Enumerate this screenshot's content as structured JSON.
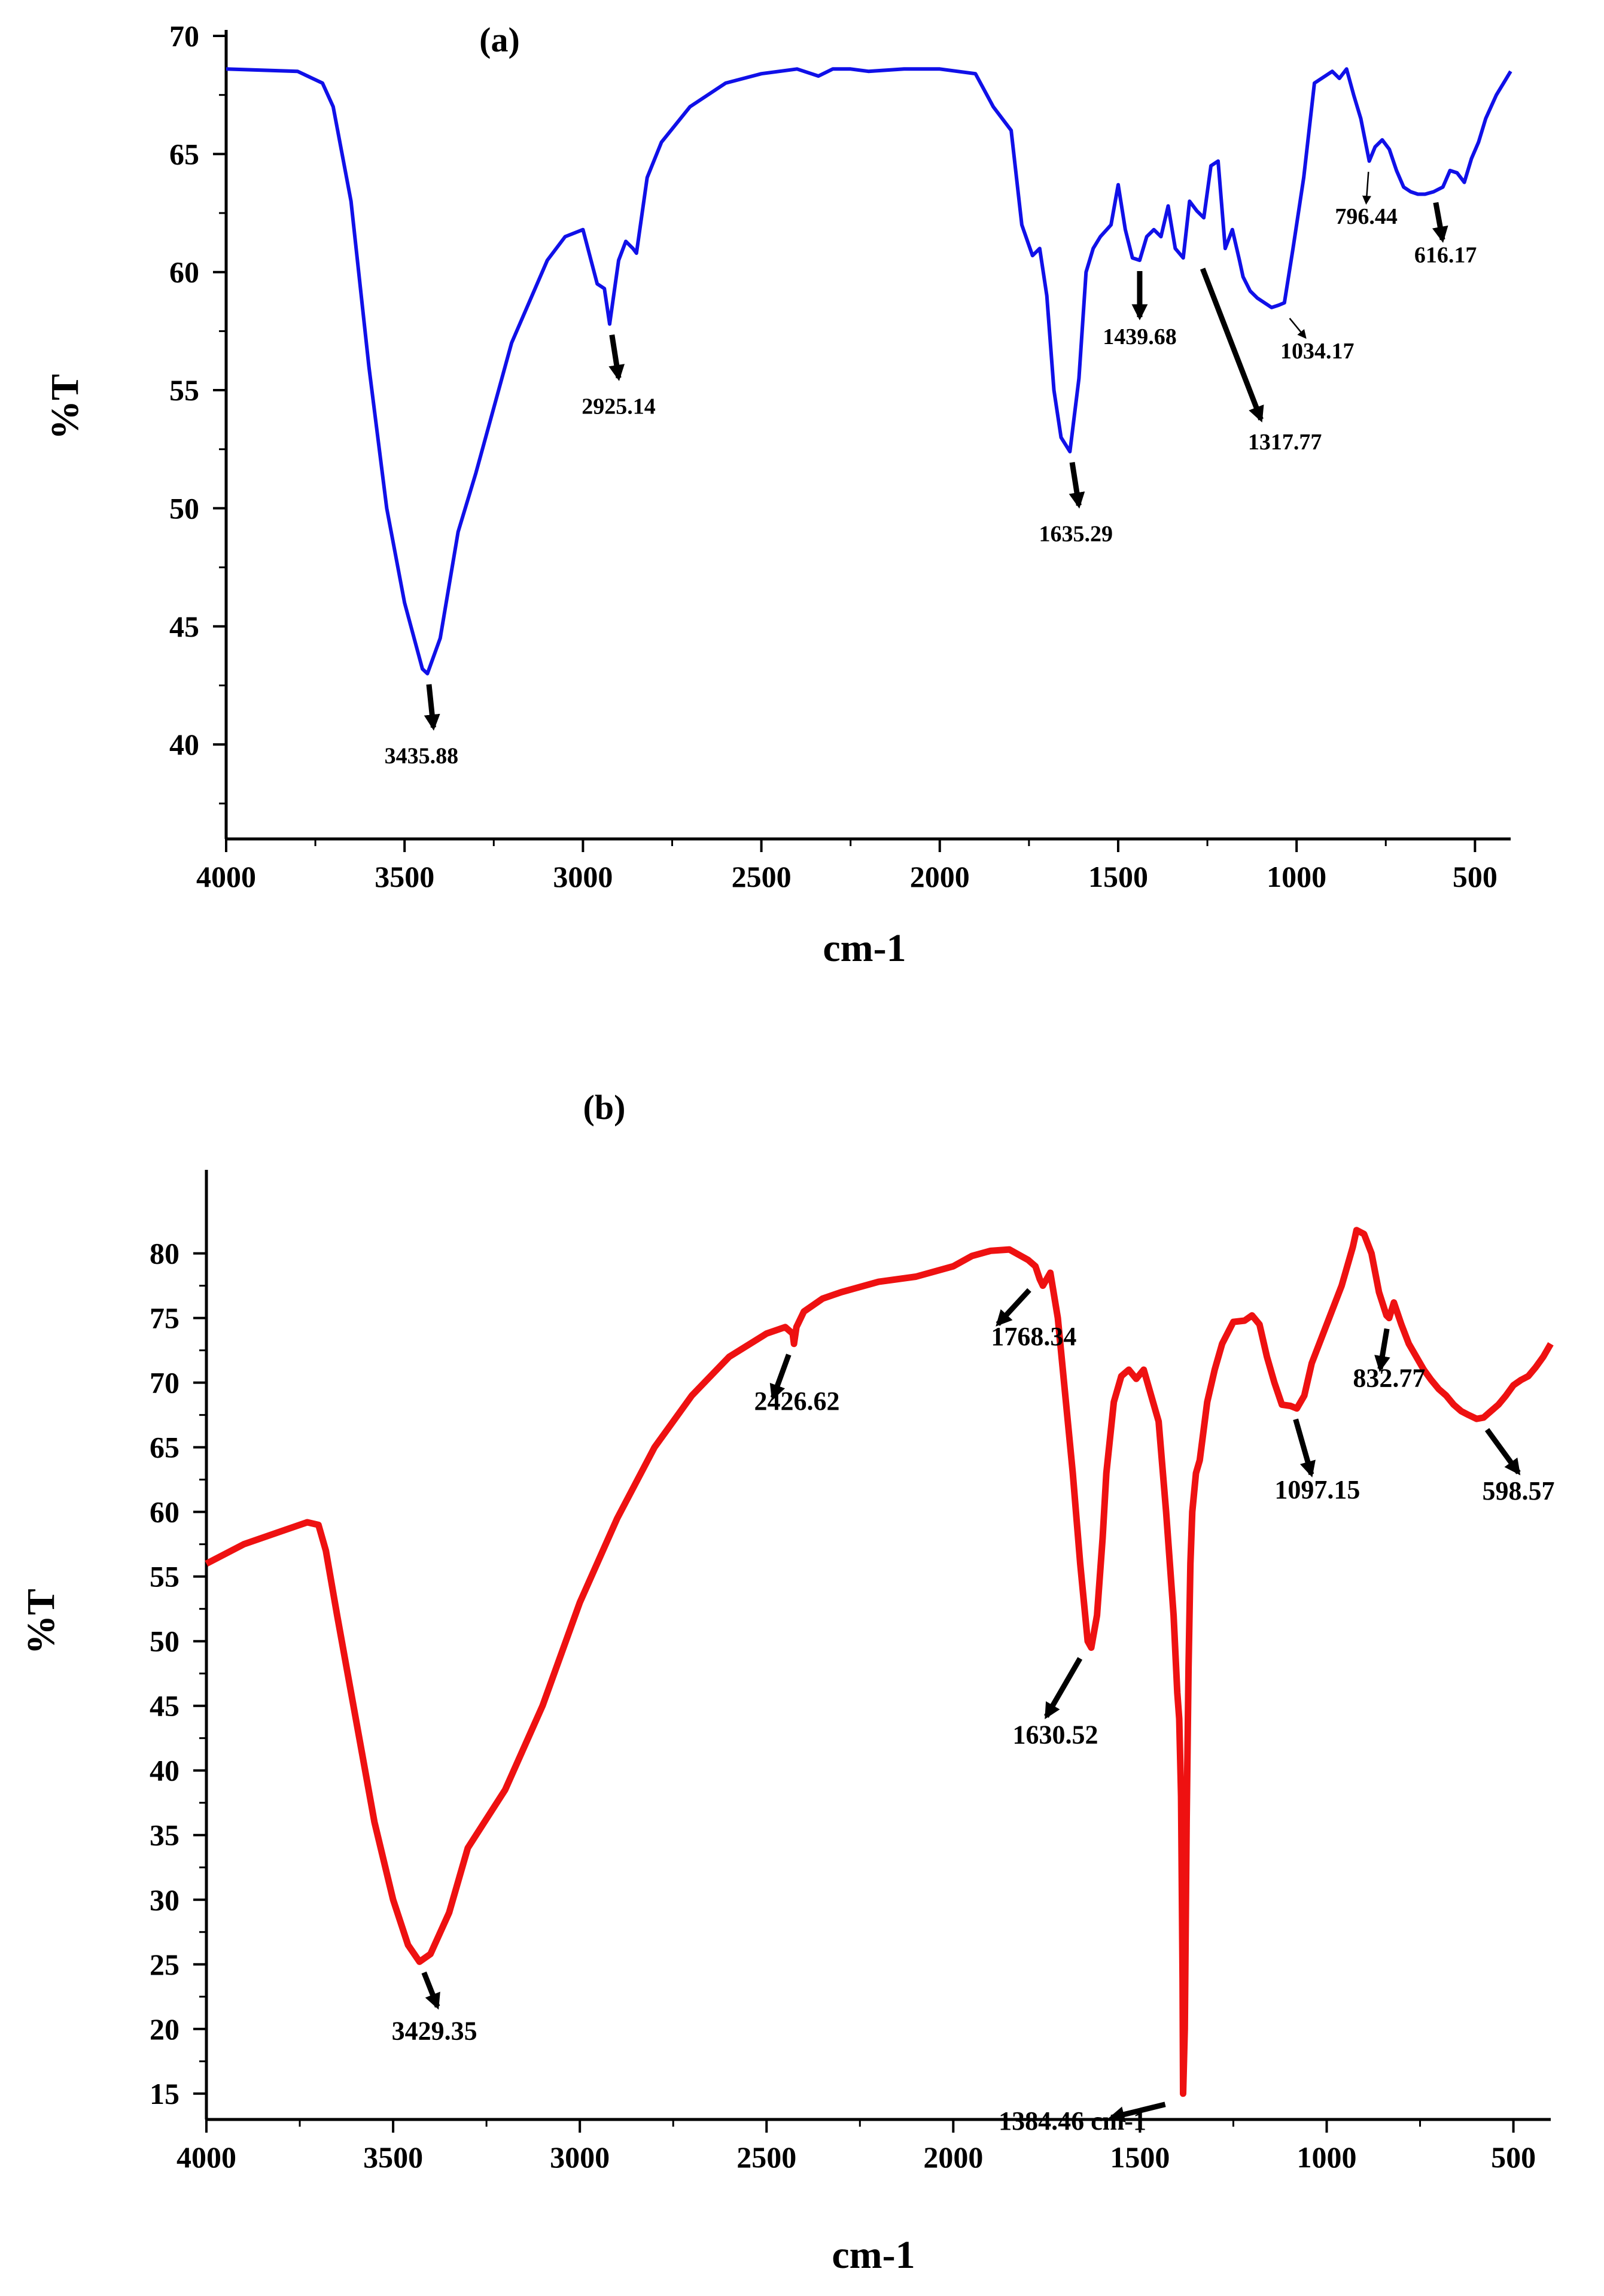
{
  "chart_data": [
    {
      "type": "line",
      "panel": "a",
      "title": "(a)",
      "xlabel": "cm-1",
      "ylabel": "%T",
      "xlim": [
        4000,
        400
      ],
      "ylim": [
        36,
        70
      ],
      "xticks": [
        4000,
        3500,
        3000,
        2500,
        2000,
        1500,
        1000,
        500
      ],
      "xtick_labels": [
        "4000",
        "3500",
        "3000",
        "2500",
        "2000",
        "1500",
        "1000",
        "500"
      ],
      "yticks": [
        40,
        45,
        50,
        55,
        60,
        65,
        70
      ],
      "ytick_labels": [
        "40",
        "45",
        "50",
        "55",
        "60",
        "65",
        "70"
      ],
      "color": "#1010e8",
      "grid": false,
      "series": [
        {
          "name": "spectrum-a",
          "x": [
            4000,
            3800,
            3730,
            3700,
            3650,
            3600,
            3550,
            3500,
            3450,
            3435.88,
            3400,
            3350,
            3300,
            3200,
            3100,
            3050,
            3000,
            2960,
            2940,
            2925.14,
            2900,
            2880,
            2860,
            2850,
            2820,
            2780,
            2700,
            2600,
            2500,
            2400,
            2340,
            2300,
            2250,
            2200,
            2100,
            2000,
            1900,
            1850,
            1800,
            1770,
            1740,
            1720,
            1700,
            1680,
            1660,
            1635.29,
            1610,
            1590,
            1570,
            1550,
            1520,
            1500,
            1480,
            1460,
            1439.68,
            1420,
            1400,
            1380,
            1360,
            1340,
            1317.77,
            1300,
            1280,
            1260,
            1240,
            1220,
            1200,
            1180,
            1160,
            1150,
            1130,
            1110,
            1090,
            1070,
            1050,
            1034.17,
            1010,
            980,
            950,
            920,
            900,
            880,
            860,
            840,
            820,
            796.44,
            780,
            760,
            740,
            720,
            700,
            680,
            660,
            640,
            616.17,
            590,
            570,
            550,
            530,
            510,
            490,
            470,
            440,
            420,
            400
          ],
          "y": [
            68.6,
            68.5,
            68.0,
            67.0,
            63.0,
            56.0,
            50.0,
            46.0,
            43.2,
            43.0,
            44.5,
            49.0,
            51.5,
            57.0,
            60.5,
            61.5,
            61.8,
            59.5,
            59.3,
            57.8,
            60.5,
            61.3,
            61.0,
            60.8,
            64.0,
            65.5,
            67.0,
            68.0,
            68.4,
            68.6,
            68.3,
            68.6,
            68.6,
            68.5,
            68.6,
            68.6,
            68.4,
            67.0,
            66.0,
            62.0,
            60.7,
            61.0,
            59.0,
            55.0,
            53.0,
            52.4,
            55.5,
            60.0,
            61.0,
            61.5,
            62.0,
            63.7,
            61.8,
            60.6,
            60.5,
            61.5,
            61.8,
            61.5,
            62.8,
            61.0,
            60.6,
            63.0,
            62.6,
            62.3,
            64.5,
            64.7,
            61.0,
            61.8,
            60.5,
            59.8,
            59.2,
            58.9,
            58.7,
            58.5,
            58.6,
            58.7,
            61.0,
            64.0,
            68.0,
            68.3,
            68.5,
            68.2,
            68.6,
            67.5,
            66.5,
            64.7,
            65.3,
            65.6,
            65.2,
            64.3,
            63.6,
            63.4,
            63.3,
            63.3,
            63.4,
            63.6,
            64.3,
            64.2,
            63.8,
            64.8,
            65.5,
            66.5,
            67.5,
            68.0,
            68.5
          ]
        }
      ],
      "annotations": [
        {
          "text": "3435.88",
          "peak": [
            3435.88,
            43.0
          ],
          "arrow": "thick"
        },
        {
          "text": "2925.14",
          "peak": [
            2925.14,
            57.8
          ],
          "arrow": "thick"
        },
        {
          "text": "1635.29",
          "peak": [
            1635.29,
            52.4
          ],
          "arrow": "thick"
        },
        {
          "text": "1439.68",
          "peak": [
            1439.68,
            60.5
          ],
          "arrow": "thick"
        },
        {
          "text": "1317.77",
          "peak": [
            1317.77,
            60.6
          ],
          "arrow": "thick"
        },
        {
          "text": "1034.17",
          "peak": [
            1034.17,
            58.5
          ],
          "arrow": "thin"
        },
        {
          "text": "796.44",
          "peak": [
            796.44,
            64.7
          ],
          "arrow": "thin"
        },
        {
          "text": "616.17",
          "peak": [
            616.17,
            63.4
          ],
          "arrow": "thick"
        }
      ]
    },
    {
      "type": "line",
      "panel": "b",
      "title": "(b)",
      "xlabel": "cm-1",
      "ylabel": "%T",
      "xlim": [
        4000,
        400
      ],
      "ylim": [
        13,
        86
      ],
      "xticks": [
        4000,
        3500,
        3000,
        2500,
        2000,
        1500,
        1000,
        500
      ],
      "xtick_labels": [
        "4000",
        "3500",
        "3000",
        "2500",
        "2000",
        "1500",
        "1000",
        "500"
      ],
      "yticks": [
        15,
        20,
        25,
        30,
        35,
        40,
        45,
        50,
        55,
        60,
        65,
        70,
        75,
        80
      ],
      "ytick_labels": [
        "15",
        "20",
        "25",
        "30",
        "35",
        "40",
        "45",
        "50",
        "55",
        "60",
        "65",
        "70",
        "75",
        "80"
      ],
      "color": "#ee1111",
      "grid": false,
      "series": [
        {
          "name": "spectrum-b",
          "x": [
            4000,
            3900,
            3800,
            3730,
            3700,
            3680,
            3650,
            3600,
            3550,
            3500,
            3460,
            3429.35,
            3400,
            3350,
            3300,
            3200,
            3100,
            3000,
            2900,
            2800,
            2700,
            2600,
            2500,
            2450,
            2430,
            2426.62,
            2420,
            2400,
            2350,
            2300,
            2200,
            2100,
            2000,
            1950,
            1900,
            1850,
            1800,
            1780,
            1768.34,
            1760,
            1740,
            1720,
            1700,
            1680,
            1660,
            1640,
            1630.52,
            1615,
            1600,
            1590,
            1570,
            1550,
            1530,
            1510,
            1490,
            1470,
            1450,
            1430,
            1410,
            1400,
            1395,
            1390,
            1386,
            1384.46,
            1380,
            1375,
            1370,
            1365,
            1360,
            1350,
            1340,
            1320,
            1300,
            1280,
            1250,
            1220,
            1200,
            1180,
            1160,
            1140,
            1120,
            1097.15,
            1080,
            1060,
            1040,
            1000,
            960,
            930,
            920,
            900,
            880,
            860,
            840,
            832.77,
            820,
            800,
            780,
            760,
            740,
            720,
            700,
            680,
            660,
            640,
            620,
            598.57,
            580,
            560,
            540,
            520,
            500,
            480,
            460,
            440,
            420,
            400
          ],
          "y": [
            56.0,
            57.5,
            58.5,
            59.2,
            59.0,
            57.0,
            52.0,
            44.0,
            36.0,
            30.0,
            26.5,
            25.2,
            25.8,
            29.0,
            34.0,
            38.5,
            45.0,
            53.0,
            59.5,
            65.0,
            69.0,
            72.0,
            73.8,
            74.3,
            73.8,
            73.0,
            74.3,
            75.5,
            76.5,
            77.0,
            77.8,
            78.2,
            79.0,
            79.8,
            80.2,
            80.3,
            79.5,
            79.0,
            78.0,
            77.5,
            78.5,
            75.0,
            69.0,
            63.0,
            56.0,
            50.0,
            49.5,
            52.0,
            58.0,
            63.0,
            68.5,
            70.5,
            71.0,
            70.3,
            71.0,
            69.0,
            67.0,
            60.0,
            52.0,
            46.0,
            44.0,
            38.0,
            24.0,
            15.0,
            20.0,
            36.0,
            48.0,
            56.0,
            60.0,
            63.0,
            64.0,
            68.5,
            71.0,
            73.0,
            74.7,
            74.8,
            75.2,
            74.5,
            72.0,
            70.0,
            68.3,
            68.2,
            68.0,
            69.0,
            71.5,
            74.5,
            77.5,
            80.5,
            81.8,
            81.5,
            80.0,
            77.0,
            75.2,
            75.0,
            76.2,
            74.5,
            73.0,
            72.0,
            71.0,
            70.2,
            69.5,
            69.0,
            68.3,
            67.8,
            67.5,
            67.2,
            67.3,
            67.8,
            68.3,
            69.0,
            69.8,
            70.2,
            70.5,
            71.2,
            72.0,
            73.0
          ]
        }
      ],
      "annotations": [
        {
          "text": "3429.35",
          "peak": [
            3429.35,
            25.2
          ],
          "arrow": "thick"
        },
        {
          "text": "2426.62",
          "peak": [
            2426.62,
            73.0
          ],
          "arrow": "thick"
        },
        {
          "text": "1768.34",
          "peak": [
            1768.34,
            78.0
          ],
          "arrow": "thick"
        },
        {
          "text": "1630.52",
          "peak": [
            1630.52,
            49.5
          ],
          "arrow": "thick"
        },
        {
          "text": "1384.46 cm-1",
          "peak": [
            1384.46,
            15.0
          ],
          "arrow": "thick"
        },
        {
          "text": "1097.15",
          "peak": [
            1097.15,
            68.0
          ],
          "arrow": "thick"
        },
        {
          "text": "832.77",
          "peak": [
            832.77,
            75.0
          ],
          "arrow": "thick"
        },
        {
          "text": "598.57",
          "peak": [
            598.57,
            67.2
          ],
          "arrow": "thick"
        }
      ]
    }
  ]
}
